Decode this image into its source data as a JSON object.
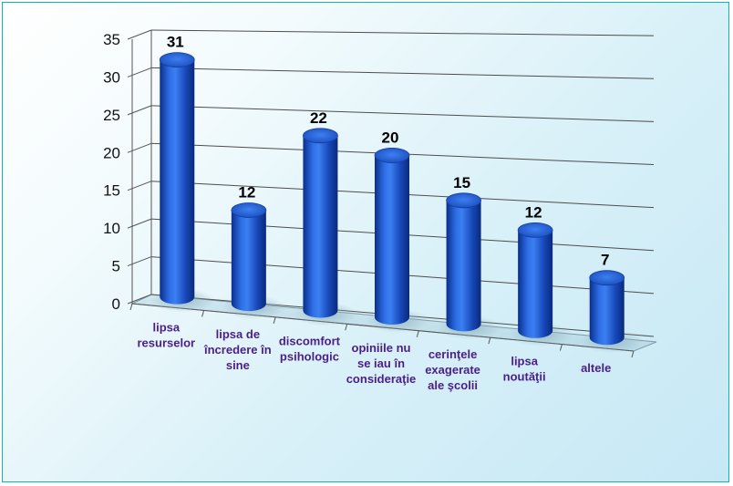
{
  "chart_data": {
    "type": "bar",
    "style": "3d-cylinder",
    "title": "",
    "xlabel": "",
    "ylabel": "",
    "ylim": [
      0,
      35
    ],
    "yticks": [
      0,
      5,
      10,
      15,
      20,
      25,
      30,
      35
    ],
    "grid": true,
    "legend": "none",
    "bar_color": "#1f5fd0",
    "categories": [
      [
        "lipsa",
        "resurselor"
      ],
      [
        "lipsa de",
        "încredere în",
        "sine"
      ],
      [
        "discomfort",
        "psihologic"
      ],
      [
        "opiniile nu",
        "se iau în",
        "consideraţie"
      ],
      [
        "cerinţele",
        "exagerate",
        "ale şcolii"
      ],
      [
        "lipsa",
        "noutăţii"
      ],
      [
        "altele"
      ]
    ],
    "values": [
      31,
      12,
      22,
      20,
      15,
      12,
      7
    ],
    "data_labels": [
      "31",
      "12",
      "22",
      "20",
      "15",
      "12",
      "7"
    ]
  }
}
